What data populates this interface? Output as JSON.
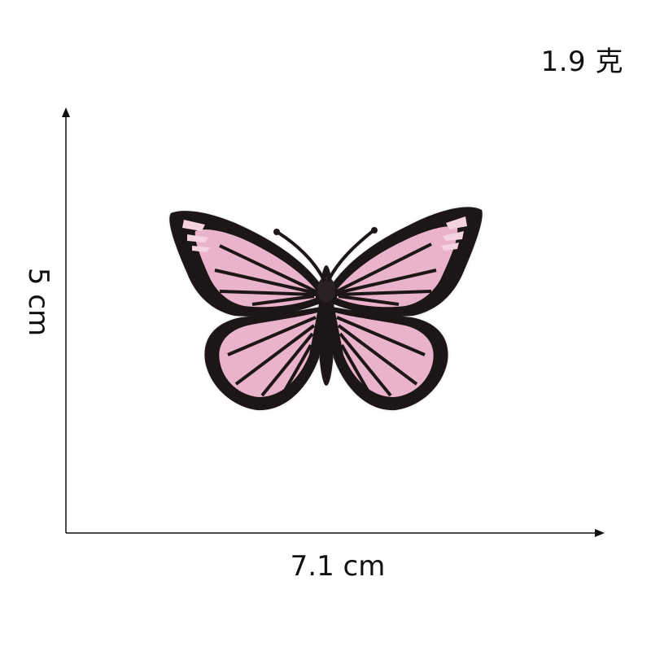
{
  "weight_label": "1.9 克",
  "width_label": "7.1 cm",
  "height_label": "5 cm",
  "colors": {
    "wing_pink": "#eab3cc",
    "wing_pink_light": "#f4d3e1",
    "outline": "#1c1416",
    "axis": "#111111"
  },
  "subject_icon": "butterfly-patch"
}
